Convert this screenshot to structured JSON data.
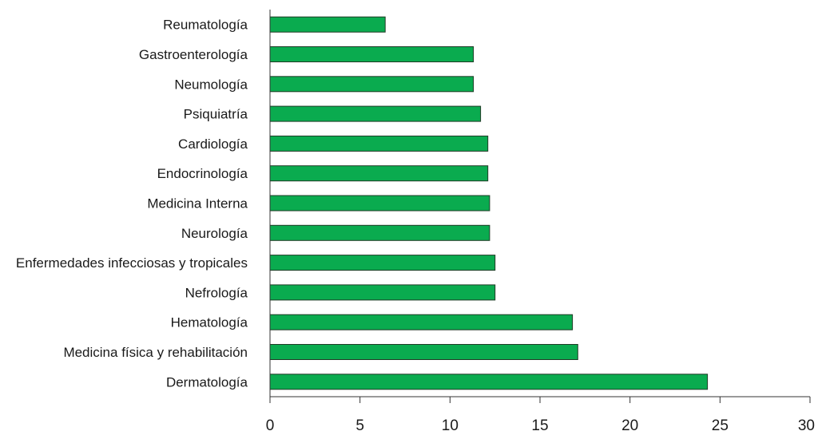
{
  "chart_data": {
    "type": "bar",
    "orientation": "horizontal",
    "categories": [
      "Reumatología",
      "Gastroenterología",
      "Neumología",
      "Psiquiatría",
      "Cardiología",
      "Endocrinología",
      "Medicina Interna",
      "Neurología",
      "Enfermedades infecciosas y tropicales",
      "Nefrología",
      "Hematología",
      "Medicina física y rehabilitación",
      "Dermatología"
    ],
    "values": [
      6.4,
      11.3,
      11.3,
      11.7,
      12.1,
      12.1,
      12.2,
      12.2,
      12.5,
      12.5,
      16.8,
      17.1,
      24.3
    ],
    "xlim": [
      0,
      30
    ],
    "xticks": [
      "0",
      "5",
      "10",
      "15",
      "20",
      "25",
      "30"
    ],
    "title": "",
    "xlabel": "",
    "ylabel": "",
    "grid": false,
    "colors": {
      "bar": "#0aab4f",
      "bar_stroke": "#1f3a25",
      "axis": "#333333"
    }
  }
}
